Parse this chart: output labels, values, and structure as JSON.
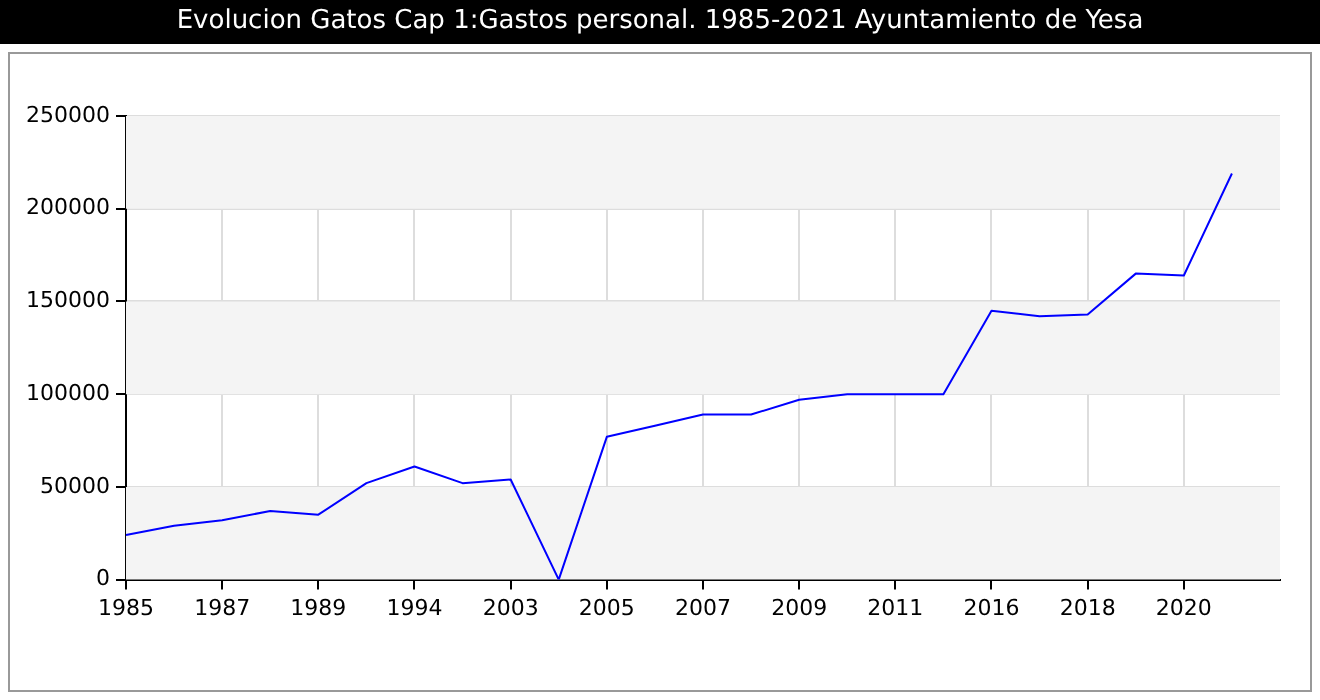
{
  "chart_data": {
    "type": "line",
    "title": "Evolucion Gatos Cap 1:Gastos personal. 1985-2021 Ayuntamiento de Yesa",
    "categories": [
      "1985",
      null,
      "1987",
      null,
      "1989",
      null,
      "1994",
      null,
      "2003",
      null,
      "2005",
      null,
      "2007",
      null,
      "2009",
      null,
      "2011",
      null,
      "2016",
      null,
      "2018",
      null,
      "2020",
      null
    ],
    "series": [
      {
        "color": "#0000ff",
        "values": [
          24000,
          29000,
          32000,
          37000,
          35000,
          52000,
          61000,
          52000,
          54000,
          0,
          77000,
          83000,
          89000,
          89000,
          97000,
          100000,
          100000,
          100000,
          145000,
          142000,
          143000,
          165000,
          164000,
          219000
        ]
      }
    ],
    "ylim": [
      0,
      250000
    ],
    "yticks": [
      0,
      50000,
      100000,
      150000,
      200000,
      250000
    ],
    "grid": true,
    "legend": false,
    "marker": "none",
    "line_style": "solid"
  }
}
